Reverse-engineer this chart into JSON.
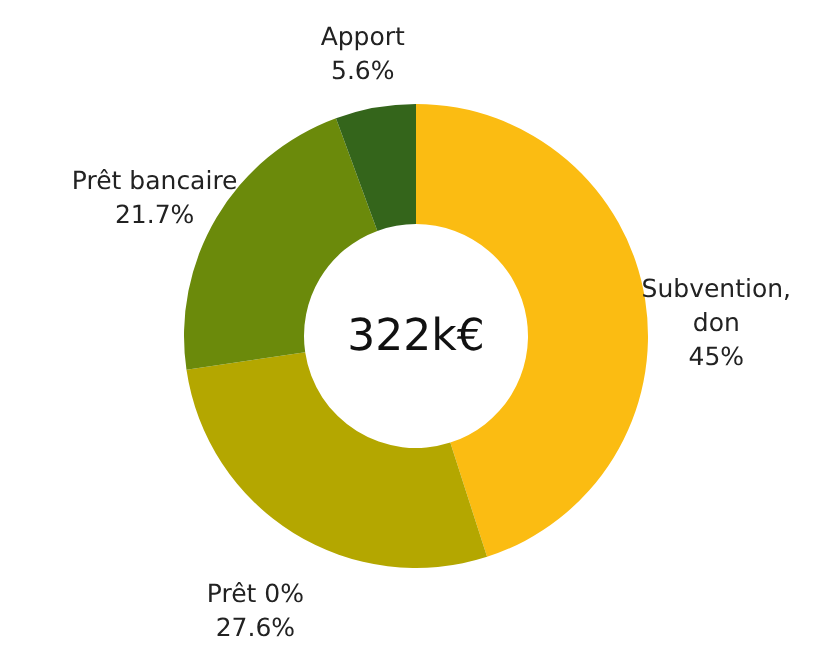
{
  "chart_data": {
    "type": "donut",
    "categories": [
      "Subvention, don",
      "Prêt 0%",
      "Prêt bancaire",
      "Apport"
    ],
    "values": [
      45,
      27.6,
      21.7,
      5.6
    ],
    "value_labels": [
      "45%",
      "27.6%",
      "21.7%",
      "5.6%"
    ],
    "colors": [
      "#fbbc12",
      "#b4a700",
      "#6b8a0b",
      "#34651b"
    ],
    "annotations": [
      "322k€"
    ]
  }
}
